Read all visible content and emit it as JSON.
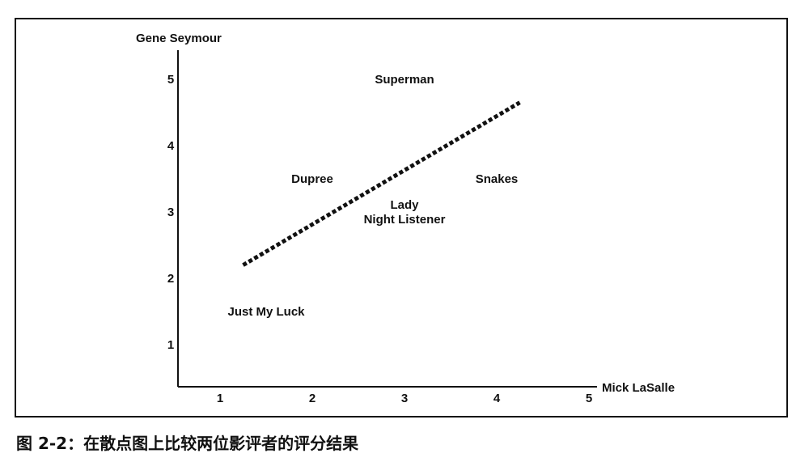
{
  "chart_data": {
    "type": "scatter",
    "title": "",
    "xlabel": "Mick LaSalle",
    "ylabel": "Gene Seymour",
    "xlim": [
      0.5,
      5
    ],
    "ylim": [
      0.5,
      5.2
    ],
    "x_ticks": [
      "1",
      "2",
      "3",
      "4",
      "5"
    ],
    "y_ticks": [
      "1",
      "2",
      "3",
      "4",
      "5"
    ],
    "grid": false,
    "legend": "none",
    "points": [
      {
        "label": "Superman",
        "x": 3.0,
        "y": 5.0
      },
      {
        "label": "Dupree",
        "x": 2.0,
        "y": 3.5
      },
      {
        "label": "Snakes",
        "x": 4.0,
        "y": 3.5
      },
      {
        "label": "Lady",
        "x": 3.0,
        "y": 3.0
      },
      {
        "label": "Night Listener",
        "x": 3.0,
        "y": 3.0
      },
      {
        "label": "Just My Luck",
        "x": 1.5,
        "y": 1.5
      }
    ],
    "trendline": {
      "style": "dotted",
      "x": [
        1.25,
        4.25
      ],
      "y": [
        2.2,
        4.65
      ]
    }
  },
  "caption": "图 2-2：在散点图上比较两位影评者的评分结果"
}
